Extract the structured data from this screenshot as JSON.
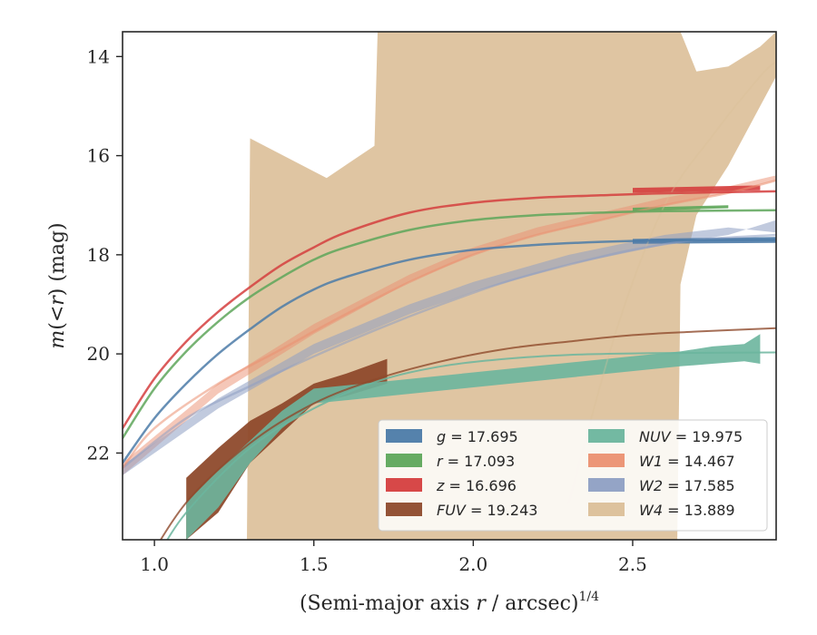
{
  "chart_data": {
    "type": "line",
    "xlabel": "(Semi-major axis r / arcsec)1/4",
    "xlabel_parts": {
      "pre": "(Semi-major axis ",
      "var": "r",
      "post": " / arcsec)",
      "sup": "1/4"
    },
    "ylabel": "m(< r) (mag)",
    "ylabel_parts": {
      "m": "m",
      "open": "(",
      "lt": "<",
      "r": "r",
      "close": ")",
      "unit": " (mag)"
    },
    "xlim": [
      0.9,
      2.95
    ],
    "ylim": [
      23.75,
      13.5
    ],
    "xticks": [
      1.0,
      1.5,
      2.0,
      2.5
    ],
    "xtick_labels": [
      "1.0",
      "1.5",
      "2.0",
      "2.5"
    ],
    "yticks": [
      14,
      16,
      18,
      20,
      22
    ],
    "ytick_labels": [
      "14",
      "16",
      "18",
      "20",
      "22"
    ],
    "grid": false,
    "legend_location": "lower-right",
    "series": [
      {
        "key": "g",
        "color": "#4c7ba8",
        "var": "g",
        "value": "17.695",
        "band_x": [
          2.5,
          2.95
        ],
        "band_lo": [
          17.68,
          17.64
        ],
        "band_hi": [
          17.78,
          17.76
        ],
        "fit_x": [
          0.9,
          1.0,
          1.1,
          1.2,
          1.3,
          1.4,
          1.5,
          1.6,
          1.8,
          2.0,
          2.2,
          2.4,
          2.6,
          2.95
        ],
        "fit_y": [
          22.2,
          21.3,
          20.6,
          20.0,
          19.5,
          19.05,
          18.7,
          18.45,
          18.1,
          17.9,
          17.8,
          17.74,
          17.71,
          17.7
        ],
        "fit_alpha": 0.85,
        "fit_width": 2.5
      },
      {
        "key": "r",
        "color": "#5ea65a",
        "var": "r",
        "value": "17.093",
        "band_x": [
          2.5,
          2.8
        ],
        "band_lo": [
          17.05,
          17.0
        ],
        "band_hi": [
          17.12,
          17.06
        ],
        "fit_x": [
          0.9,
          1.0,
          1.1,
          1.2,
          1.3,
          1.4,
          1.5,
          1.6,
          1.8,
          2.0,
          2.2,
          2.4,
          2.6,
          2.95
        ],
        "fit_y": [
          21.7,
          20.7,
          19.95,
          19.35,
          18.85,
          18.45,
          18.1,
          17.85,
          17.5,
          17.3,
          17.2,
          17.15,
          17.12,
          17.1
        ],
        "fit_alpha": 0.85,
        "fit_width": 2.5
      },
      {
        "key": "z",
        "color": "#d53e3e",
        "var": "z",
        "value": "16.696",
        "band_x": [
          2.5,
          2.9
        ],
        "band_lo": [
          16.65,
          16.6
        ],
        "band_hi": [
          16.75,
          16.7
        ],
        "fit_x": [
          0.9,
          1.0,
          1.1,
          1.2,
          1.3,
          1.4,
          1.5,
          1.6,
          1.8,
          2.0,
          2.2,
          2.4,
          2.6,
          2.95
        ],
        "fit_y": [
          21.5,
          20.5,
          19.75,
          19.15,
          18.65,
          18.2,
          17.85,
          17.55,
          17.15,
          16.95,
          16.85,
          16.8,
          16.76,
          16.72
        ],
        "fit_alpha": 0.85,
        "fit_width": 2.5
      },
      {
        "key": "FUV",
        "color": "#8e4a2c",
        "var": "FUV",
        "value": "19.243",
        "band_x": [
          1.1,
          1.2,
          1.3,
          1.4,
          1.5,
          1.6,
          1.73
        ],
        "band_lo": [
          23.75,
          23.2,
          22.2,
          21.6,
          21.0,
          20.85,
          20.6
        ],
        "band_hi": [
          22.5,
          21.9,
          21.35,
          21.0,
          20.6,
          20.4,
          20.1
        ],
        "fit_x": [
          0.95,
          1.1,
          1.3,
          1.5,
          1.7,
          1.9,
          2.1,
          2.3,
          2.5,
          2.7,
          2.95
        ],
        "fit_y": [
          24.5,
          23.0,
          21.8,
          21.0,
          20.5,
          20.15,
          19.9,
          19.75,
          19.62,
          19.55,
          19.48
        ],
        "fit_alpha": 0.8,
        "fit_width": 2.0
      },
      {
        "key": "NUV",
        "color": "#6bb59d",
        "var": "NUV",
        "value": "19.975",
        "band_x": [
          1.1,
          1.2,
          1.3,
          1.4,
          1.5,
          2.65,
          2.75,
          2.85,
          2.9
        ],
        "band_lo": [
          23.75,
          23.1,
          22.2,
          21.5,
          21.0,
          20.25,
          20.2,
          20.15,
          20.2
        ],
        "band_hi": [
          23.0,
          22.35,
          21.75,
          21.15,
          20.7,
          19.95,
          19.85,
          19.8,
          19.6
        ],
        "fit_x": [
          1.0,
          1.1,
          1.3,
          1.5,
          1.7,
          1.9,
          2.1,
          2.3,
          2.5,
          2.7,
          2.95
        ],
        "fit_y": [
          24.2,
          23.2,
          21.9,
          21.1,
          20.55,
          20.25,
          20.1,
          20.02,
          19.99,
          19.98,
          19.97
        ],
        "fit_alpha": 0.85,
        "fit_width": 2.0
      },
      {
        "key": "W1",
        "color": "#eb9071",
        "var": "W1",
        "value": "14.467",
        "band_x": [
          0.9,
          1.2,
          1.5,
          1.8,
          2.0,
          2.2,
          2.4,
          2.6,
          2.8,
          2.95
        ],
        "band_lo": [
          22.45,
          20.8,
          19.6,
          18.55,
          18.0,
          17.6,
          17.3,
          17.0,
          16.75,
          16.5
        ],
        "band_hi": [
          22.2,
          20.6,
          19.4,
          18.4,
          17.85,
          17.45,
          17.15,
          16.85,
          16.62,
          16.4
        ],
        "fit_x": [
          0.9,
          1.0,
          1.2,
          1.4,
          1.6,
          1.8,
          2.0,
          2.2,
          2.4,
          2.6,
          2.8,
          2.95
        ],
        "fit_y": [
          22.3,
          21.5,
          20.6,
          19.9,
          19.2,
          18.55,
          18.0,
          17.6,
          17.3,
          17.0,
          16.75,
          16.5
        ],
        "fit_alpha": 0.55,
        "fit_width": 2.5
      },
      {
        "key": "W2",
        "color": "#8e9fc3",
        "var": "W2",
        "value": "17.585",
        "band_x": [
          0.9,
          1.2,
          1.5,
          1.8,
          2.0,
          2.3,
          2.6,
          2.8,
          2.95
        ],
        "band_lo": [
          22.45,
          21.1,
          20.0,
          19.2,
          18.75,
          18.2,
          17.8,
          17.6,
          17.3
        ],
        "band_hi": [
          22.25,
          20.9,
          19.8,
          19.0,
          18.55,
          18.0,
          17.6,
          17.45,
          17.55
        ],
        "fit_x": [
          0.9,
          1.1,
          1.3,
          1.5,
          1.7,
          1.9,
          2.1,
          2.3,
          2.5,
          2.7,
          2.95
        ],
        "fit_y": [
          22.3,
          21.3,
          20.65,
          20.05,
          19.5,
          19.0,
          18.55,
          18.2,
          17.9,
          17.7,
          17.6
        ],
        "fit_alpha": 0.55,
        "fit_width": 2.5
      },
      {
        "key": "W4",
        "color": "#dbbf98",
        "var": "W4",
        "value": "13.889",
        "band_x": [
          1.29,
          1.3,
          1.54,
          1.69,
          1.7,
          2.64,
          2.65,
          2.7,
          2.8,
          2.9,
          2.95
        ],
        "band_lo": [
          23.75,
          23.75,
          23.75,
          23.75,
          23.75,
          23.75,
          18.6,
          17.2,
          16.2,
          15.0,
          14.4
        ],
        "band_hi": [
          23.75,
          15.65,
          16.45,
          15.8,
          13.5,
          13.5,
          13.5,
          14.3,
          14.2,
          13.8,
          13.5
        ],
        "fit_x": [
          2.3,
          2.45,
          2.6,
          2.75,
          2.9,
          2.95
        ],
        "fit_y": [
          23.0,
          19.5,
          17.0,
          15.6,
          14.4,
          14.1
        ],
        "fit_alpha": 0.35,
        "fit_width": 1.8
      }
    ]
  }
}
